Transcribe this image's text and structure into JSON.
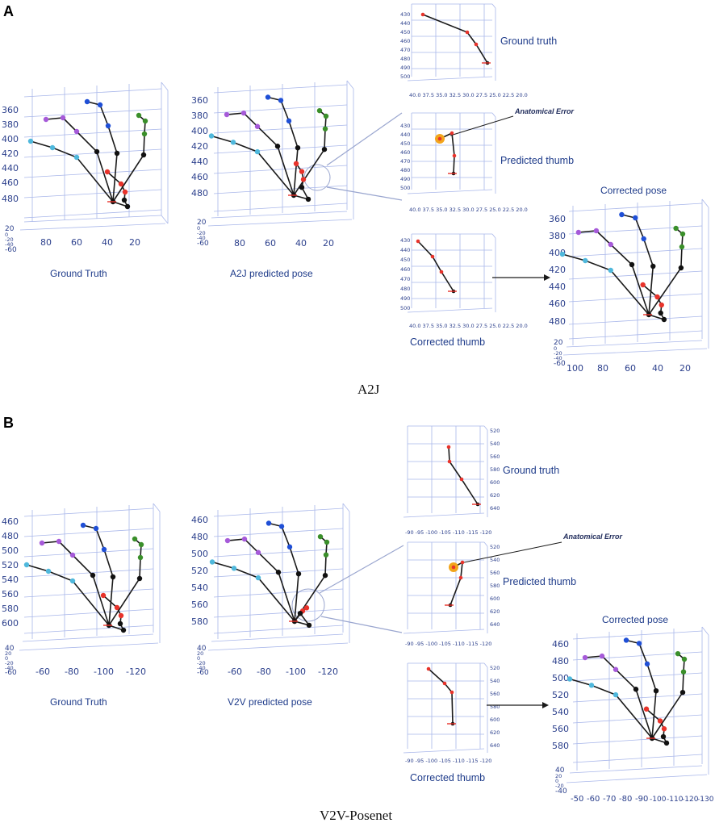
{
  "panels": [
    {
      "letter": "A",
      "method": "A2J",
      "plots": {
        "gt": {
          "caption": "Ground Truth",
          "y_ticks": [
            "360",
            "380",
            "400",
            "420",
            "440",
            "460",
            "480"
          ],
          "x_ticks": [
            "80",
            "60",
            "40",
            "20"
          ],
          "z_ticks": [
            "20",
            "0",
            "-20",
            "-40",
            "-60"
          ]
        },
        "pred": {
          "caption": "A2J predicted pose",
          "y_ticks": [
            "360",
            "380",
            "400",
            "420",
            "440",
            "460",
            "480"
          ],
          "x_ticks": [
            "80",
            "60",
            "40",
            "20"
          ],
          "z_ticks": [
            "20",
            "0",
            "-20",
            "-40",
            "-60"
          ]
        },
        "corrected_pose": {
          "caption": "Corrected pose",
          "y_ticks": [
            "360",
            "380",
            "400",
            "420",
            "440",
            "460",
            "480"
          ],
          "x_ticks": [
            "100",
            "80",
            "60",
            "40",
            "20"
          ],
          "z_ticks": [
            "20",
            "0",
            "-20",
            "-40",
            "-60"
          ]
        }
      },
      "thumbs": {
        "gt": {
          "caption": "Ground truth",
          "y_ticks": [
            "430",
            "440",
            "450",
            "460",
            "470",
            "480",
            "490",
            "500"
          ],
          "x_tick_text": "40.0 37.5 35.0 32.5 30.0 27.5 25.0 22.5 20.0"
        },
        "pred": {
          "caption": "Predicted thumb",
          "y_ticks": [
            "430",
            "440",
            "450",
            "460",
            "470",
            "480",
            "490",
            "500"
          ],
          "x_tick_text": "40.0 37.5 35.0 32.5 30.0 27.5 25.0 22.5 20.0"
        },
        "corrected": {
          "caption": "Corrected thumb",
          "y_ticks": [
            "430",
            "440",
            "450",
            "460",
            "470",
            "480",
            "490",
            "500"
          ],
          "x_tick_text": "40.0 37.5 35.0 32.5 30.0 27.5 25.0 22.5 20.0"
        }
      },
      "annotation": "Anatomical Error"
    },
    {
      "letter": "B",
      "method": "V2V-Posenet",
      "plots": {
        "gt": {
          "caption": "Ground Truth",
          "y_ticks": [
            "460",
            "480",
            "500",
            "520",
            "540",
            "560",
            "580",
            "600"
          ],
          "x_ticks": [
            "-60",
            "-80",
            "-100",
            "-120"
          ],
          "z_ticks": [
            "40",
            "20",
            "0",
            "-20",
            "-40",
            "-60"
          ]
        },
        "pred": {
          "caption": "V2V predicted pose",
          "y_ticks": [
            "460",
            "480",
            "500",
            "520",
            "540",
            "560",
            "580"
          ],
          "x_ticks": [
            "-60",
            "-80",
            "-100",
            "-120"
          ],
          "z_ticks": [
            "40",
            "20",
            "0",
            "-20",
            "-40",
            "-60"
          ]
        },
        "corrected_pose": {
          "caption": "Corrected pose",
          "y_ticks": [
            "460",
            "480",
            "500",
            "520",
            "540",
            "560",
            "580"
          ],
          "x_ticks": [
            "-50",
            "-60",
            "-70",
            "-80",
            "-90",
            "-100",
            "-110",
            "-120",
            "-130"
          ],
          "z_ticks": [
            "40",
            "20",
            "0",
            "-20",
            "-40"
          ]
        }
      },
      "thumbs": {
        "gt": {
          "caption": "Ground truth",
          "y_ticks": [
            "520",
            "540",
            "560",
            "580",
            "600",
            "620",
            "640"
          ],
          "x_tick_text": "-90 -95 -100 -105 -110 -115 -120"
        },
        "pred": {
          "caption": "Predicted thumb",
          "y_ticks": [
            "520",
            "540",
            "560",
            "580",
            "600",
            "620",
            "640"
          ],
          "x_tick_text": "-90 -95 -100 -105 -110 -115 -120"
        },
        "corrected": {
          "caption": "Corrected thumb",
          "y_ticks": [
            "520",
            "540",
            "560",
            "580",
            "600",
            "620",
            "640"
          ],
          "x_tick_text": "-90 -95 -100 -105 -110 -115 -120"
        }
      },
      "annotation": "Anatomical Error"
    }
  ],
  "colors": {
    "bone": "#1a1a1a",
    "grid": "#a9b7ea",
    "text": "#1e3b8a",
    "index": "#1f4fd6",
    "middle": "#a65ad9",
    "ring": "#4fb8dc",
    "pinky": "#3a8f2a",
    "thumb": "#e8332b",
    "error": "#f2a51c",
    "joint": "#111111"
  }
}
